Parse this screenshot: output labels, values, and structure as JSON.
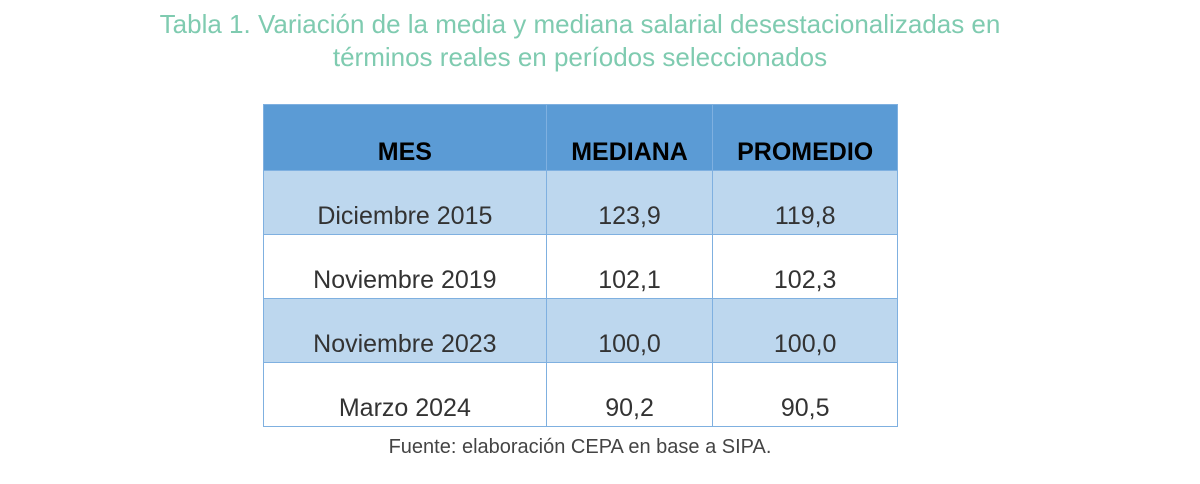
{
  "title": {
    "line1": "Tabla 1. Variación de la media y mediana salarial desestacionalizadas en",
    "line2": "términos reales en períodos seleccionados"
  },
  "table": {
    "headers": [
      "MES",
      "MEDIANA",
      "PROMEDIO"
    ],
    "rows": [
      [
        "Diciembre 2015",
        "123,9",
        "119,8"
      ],
      [
        "Noviembre 2019",
        "102,1",
        "102,3"
      ],
      [
        "Noviembre 2023",
        "100,0",
        "100,0"
      ],
      [
        "Marzo 2024",
        "90,2",
        "90,5"
      ]
    ]
  },
  "source": "Fuente: elaboración CEPA en base a SIPA."
}
